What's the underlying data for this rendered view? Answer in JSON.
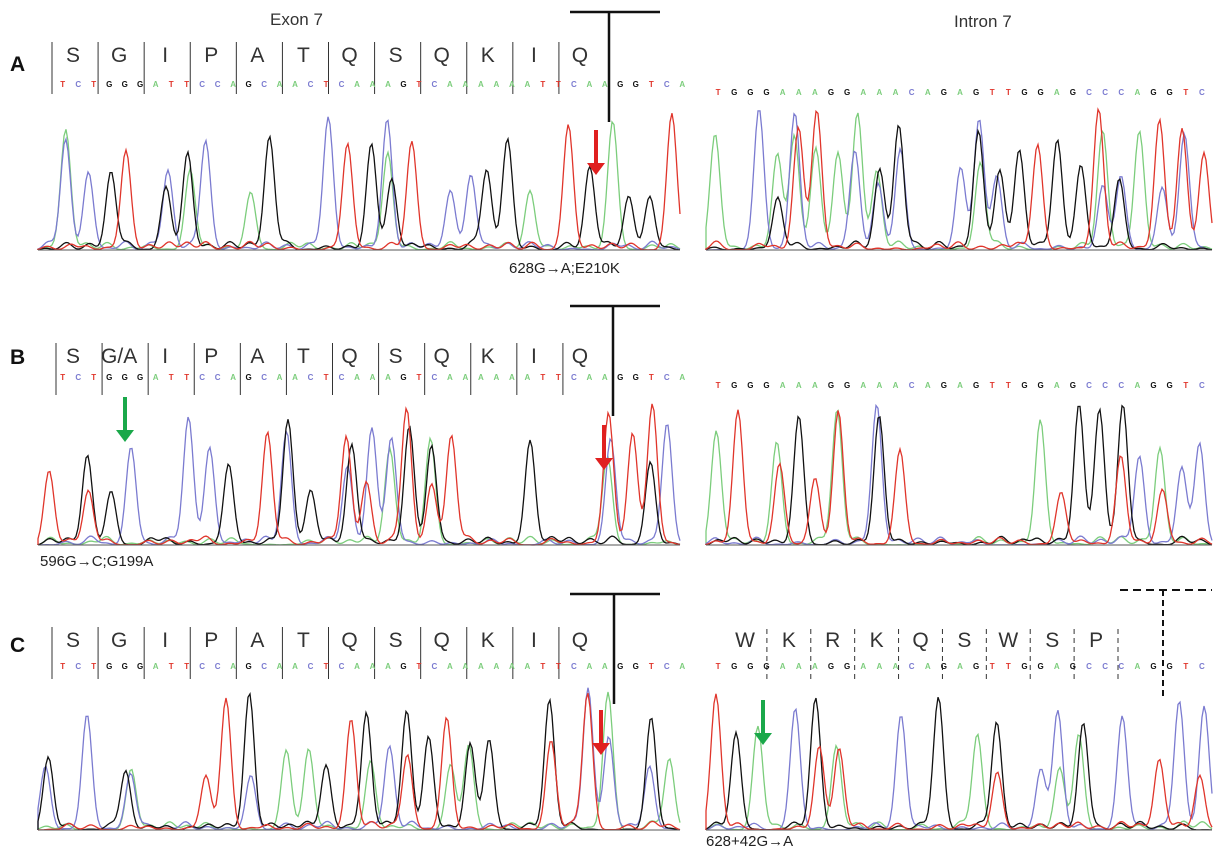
{
  "columns": {
    "exon": "Exon 7",
    "intron": "Intron 7"
  },
  "colors": {
    "A": "#7ccd7c",
    "C": "#7b7bd0",
    "G": "#111111",
    "T": "#e0352b",
    "red_arrow": "#e02020",
    "green_arrow": "#1aa84a"
  },
  "panels": [
    {
      "letter": "A",
      "exon_aa": [
        "S",
        "G",
        "I",
        "P",
        "A",
        "T",
        "Q",
        "S",
        "Q",
        "K",
        "I",
        "Q"
      ],
      "exon_nt": "TCTGGGATTCCAGCAACTCAAAGTCAAAAAATTCAAGGTCA",
      "intron_aa": [],
      "intron_nt": "TGGGAAAGGAAACAGAGTTGGAGCCCAGGTC",
      "mutation": "628G→A;E210K",
      "intron_mutation": ""
    },
    {
      "letter": "B",
      "exon_aa": [
        "S",
        "G/A",
        "I",
        "P",
        "A",
        "T",
        "Q",
        "S",
        "Q",
        "K",
        "I",
        "Q"
      ],
      "exon_nt": "TCTGGGATTCCAGCAACTCAAAGTCAAAAAATTCAAGGTCA",
      "intron_aa": [],
      "intron_nt": "TGGGAAAGGAAACAGAGTTGGAGCCCAGGTC",
      "mutation": "596G→C;G199A",
      "intron_mutation": ""
    },
    {
      "letter": "C",
      "exon_aa": [
        "S",
        "G",
        "I",
        "P",
        "A",
        "T",
        "Q",
        "S",
        "Q",
        "K",
        "I",
        "Q"
      ],
      "exon_nt": "TCTGGGATTCCAGCAACTCAAAGTCAAAAAATTCAAGGTCA",
      "intron_aa": [
        "W",
        "K",
        "R",
        "K",
        "Q",
        "S",
        "W",
        "S",
        "P"
      ],
      "intron_nt": "TGGGAAAGGAAACAGAGTTGGAGCCCAGGTC",
      "mutation": "",
      "intron_mutation": "628+42G→A"
    }
  ]
}
